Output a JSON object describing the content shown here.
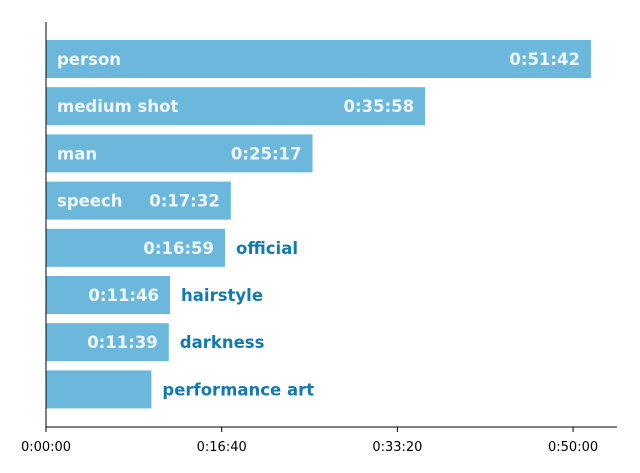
{
  "colors": {
    "bar": "#6cb8dc",
    "label_inside": "#eef7fb",
    "label_outside": "#137ab0",
    "axis": "#000000"
  },
  "chart_data": {
    "type": "bar",
    "orientation": "horizontal",
    "title": "",
    "xlabel": "",
    "ylabel": "",
    "value_unit": "seconds",
    "xlim": [
      0,
      3250
    ],
    "grid": false,
    "legend": "none",
    "categories": [
      "person",
      "medium shot",
      "man",
      "speech",
      "official",
      "hairstyle",
      "darkness",
      "performance art"
    ],
    "values": [
      3102,
      2158,
      1517,
      1052,
      1019,
      706,
      699,
      600
    ],
    "value_labels": [
      "0:51:42",
      "0:35:58",
      "0:25:17",
      "0:17:32",
      "0:16:59",
      "0:11:46",
      "0:11:39",
      ""
    ],
    "xticks": [
      0,
      1000,
      2000,
      3000
    ],
    "xtick_labels": [
      "0:00:00",
      "0:16:40",
      "0:33:20",
      "0:50:00"
    ]
  }
}
